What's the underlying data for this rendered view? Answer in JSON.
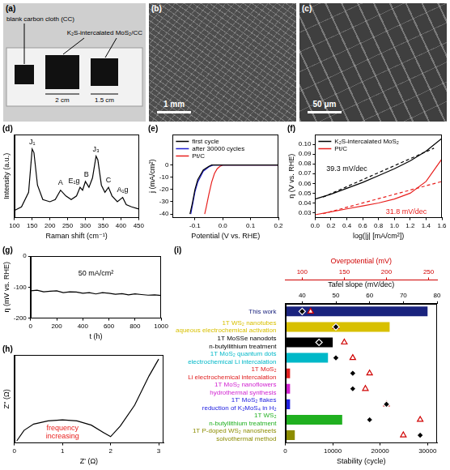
{
  "figure": {
    "a": {
      "letter": "(a)",
      "labels": [
        "blank carbon cloth (CC)",
        "K₂S-intercalated MoS₂/CC"
      ],
      "dimensions": [
        "2 cm",
        "1.5 cm"
      ]
    },
    "b": {
      "letter": "(b)",
      "scale_bar": "1 mm"
    },
    "c": {
      "letter": "(c)",
      "scale_bar": "50 μm"
    }
  },
  "chart_data": [
    {
      "letter": "(d)",
      "type": "line",
      "x_label": "Raman shift (cm⁻¹)",
      "y_label": "Intensity (a.u.)",
      "xlim": [
        100,
        450
      ],
      "xticks": [
        100,
        150,
        200,
        250,
        300,
        350,
        400,
        450
      ],
      "ylim": [
        0,
        115
      ],
      "tick_labels": "x",
      "grid": false,
      "series": [
        {
          "color": "#000000",
          "x": [
            100,
            120,
            140,
            150,
            155,
            165,
            180,
            200,
            215,
            230,
            245,
            260,
            275,
            285,
            292,
            300,
            310,
            320,
            330,
            335,
            345,
            355,
            365,
            375,
            390,
            405,
            415,
            430,
            450
          ],
          "values": [
            10,
            15,
            35,
            95,
            90,
            45,
            25,
            22,
            25,
            38,
            30,
            25,
            30,
            42,
            38,
            50,
            42,
            55,
            85,
            80,
            45,
            35,
            42,
            30,
            22,
            28,
            18,
            15,
            12
          ]
        }
      ],
      "annotations": [
        {
          "text": "J₁",
          "x": 150,
          "y": 104
        },
        {
          "text": "A",
          "x": 230,
          "y": 48
        },
        {
          "text": "E₁g",
          "x": 268,
          "y": 50
        },
        {
          "text": "B",
          "x": 303,
          "y": 60
        },
        {
          "text": "J₃",
          "x": 330,
          "y": 94
        },
        {
          "text": "C",
          "x": 365,
          "y": 52
        },
        {
          "text": "A₁g",
          "x": 405,
          "y": 38
        }
      ]
    },
    {
      "letter": "(e)",
      "type": "line",
      "x_label": "Potential (V vs. RHE)",
      "y_label": "j (mA/cm²)",
      "xlim": [
        -0.18,
        0.2
      ],
      "xticks": [
        -0.1,
        {
          "value": 0,
          "label": "0.0"
        },
        0.1,
        0.2
      ],
      "ylim": [
        -43,
        25
      ],
      "yticks": [
        -40,
        -30,
        -20,
        -10,
        0
      ],
      "grid": false,
      "legend": "upper left",
      "series": [
        {
          "name": "first cycle",
          "color": "#000000",
          "x": [
            -0.118,
            -0.11,
            -0.1,
            -0.09,
            -0.07,
            -0.05,
            -0.04,
            0,
            0.2
          ],
          "values": [
            -40,
            -32,
            -20,
            -12,
            -4,
            -1,
            0,
            0,
            0
          ]
        },
        {
          "name": "after 30000 cycles",
          "color": "#1f1fd0",
          "x": [
            -0.115,
            -0.11,
            -0.1,
            -0.09,
            -0.07,
            -0.05,
            -0.035,
            0,
            0.2
          ],
          "values": [
            -40,
            -34,
            -22,
            -14,
            -5,
            -1.5,
            0,
            0,
            0
          ]
        },
        {
          "name": "Pt/C",
          "color": "#e8201e",
          "x": [
            -0.065,
            -0.06,
            -0.05,
            -0.04,
            -0.03,
            -0.02,
            -0.01,
            0,
            0.2
          ],
          "values": [
            -40,
            -35,
            -24,
            -14,
            -7,
            -3,
            -1,
            0,
            0
          ]
        }
      ]
    },
    {
      "letter": "(f)",
      "type": "line",
      "x_label": "log(|j| [mA/cm²])",
      "y_label": "η (V vs. RHE)",
      "xlim": [
        0,
        1.6
      ],
      "xticks": [
        {
          "value": 0,
          "label": "0.0"
        },
        0.2,
        0.4,
        0.6,
        0.8,
        {
          "value": 1,
          "label": "1.0"
        },
        1.2,
        1.4,
        1.6
      ],
      "ylim": [
        0.025,
        0.11
      ],
      "yticks": [
        0.03,
        0.04,
        0.05,
        0.06,
        0.07,
        0.08,
        0.09,
        {
          "value": 0.1,
          "label": "0.10"
        }
      ],
      "grid": false,
      "legend": "upper left",
      "series": [
        {
          "name": "K₂S-intercalated MoS₂",
          "color": "#000000",
          "x": [
            0,
            0.2,
            0.4,
            0.6,
            0.8,
            1.0,
            1.2,
            1.4,
            1.6
          ],
          "values": [
            0.044,
            0.049,
            0.055,
            0.061,
            0.068,
            0.075,
            0.083,
            0.093,
            0.106
          ]
        },
        {
          "name": "Pt/C",
          "color": "#e8201e",
          "x": [
            0,
            0.2,
            0.4,
            0.6,
            0.8,
            1.0,
            1.2,
            1.4,
            1.6
          ],
          "values": [
            0.028,
            0.031,
            0.034,
            0.037,
            0.04,
            0.044,
            0.05,
            0.062,
            0.085
          ]
        },
        {
          "color": "#000000",
          "line_style": "dashed",
          "x": [
            0.1,
            1.5
          ],
          "values": [
            0.046,
            0.096
          ]
        },
        {
          "color": "#e8201e",
          "line_style": "dashed",
          "x": [
            0.1,
            1.6
          ],
          "values": [
            0.029,
            0.062
          ]
        }
      ],
      "annotations": [
        {
          "text": "39.3 mV/dec",
          "x": 0.4,
          "y": 0.075
        },
        {
          "text": "31.8 mV/dec",
          "x": 1.15,
          "y": 0.031,
          "color": "#e8201e"
        }
      ]
    },
    {
      "letter": "(g)",
      "type": "line",
      "x_label": "t (h)",
      "y_label": "η (mV vs. RHE)",
      "xlim": [
        0,
        1000
      ],
      "xticks": [
        0,
        200,
        400,
        600,
        800,
        1000
      ],
      "ylim": [
        -200,
        0
      ],
      "yticks": [
        -200,
        -100,
        0
      ],
      "grid": false,
      "series": [
        {
          "color": "#000000",
          "x": [
            0,
            50,
            100,
            150,
            200,
            250,
            300,
            350,
            400,
            450,
            500,
            550,
            600,
            650,
            700,
            750,
            800,
            850,
            900,
            950,
            1000
          ],
          "values": [
            -112,
            -110,
            -115,
            -113,
            -112,
            -118,
            -115,
            -116,
            -120,
            -118,
            -122,
            -118,
            -120,
            -123,
            -121,
            -125,
            -122,
            -124,
            -126,
            -125,
            -127
          ]
        }
      ],
      "annotations": [
        {
          "text": "50 mA/cm²",
          "x": 500,
          "y": -55
        }
      ]
    },
    {
      "letter": "(h)",
      "type": "line",
      "x_label": "Z' (Ω)",
      "y_label": "Z'' (Ω)",
      "xlim": [
        0,
        3.1
      ],
      "xticks": [
        0,
        1,
        2,
        3
      ],
      "ylim": [
        0,
        4.2
      ],
      "tick_labels": "x",
      "grid": false,
      "series": [
        {
          "color": "#000000",
          "x": [
            0.05,
            0.2,
            0.4,
            0.7,
            1.0,
            1.3,
            1.6,
            1.85,
            2.0,
            2.2,
            2.5,
            2.8,
            3.0
          ],
          "values": [
            0.1,
            0.6,
            0.9,
            1.05,
            1.1,
            1.05,
            0.85,
            0.5,
            0.3,
            0.8,
            1.8,
            3.2,
            4.0
          ]
        }
      ],
      "annotations": [
        {
          "text": "frequency increasing",
          "x": 1.0,
          "y": 0.5,
          "color": "#e8201e"
        }
      ]
    },
    {
      "letter": "(i)",
      "type": "bar",
      "orientation": "horizontal",
      "grid": false,
      "categories": [
        [
          "This work"
        ],
        [
          "1T WS₂ nanotubes",
          "aqueous electrochemical activation"
        ],
        [
          "1T MoSSe nanodots",
          "n-butyllithium treatment"
        ],
        [
          "1T MoS₂ quantum dots",
          "electrochemical Li intercalation"
        ],
        [
          "1T MoS₂",
          "Li electrochemical intercalation"
        ],
        [
          "1T MoS₂ nanoflowers",
          "hydrothermal synthesis"
        ],
        [
          "1T' MoS₂ flakes",
          "reduction of K₂MoS₄ in H₂"
        ],
        [
          "1T WS₂",
          "n-butyllithium treatment"
        ],
        [
          "1T P-doped WS₂ nanosheets",
          "solvothermal method"
        ]
      ],
      "colors": [
        "#1a237e",
        "#d8c000",
        "#000000",
        "#00b8c8",
        "#e02020",
        "#d020d0",
        "#2020e0",
        "#20b020",
        "#8c8c00"
      ],
      "x_label": "Stability (cycle)",
      "xlim": [
        0,
        32000
      ],
      "xticks": [
        0,
        10000,
        20000,
        30000
      ],
      "values": [
        30000,
        22000,
        10000,
        9000,
        1000,
        1000,
        1000,
        12000,
        2000
      ],
      "tafel_slope": {
        "title": "Tafel slope (mV/dec)",
        "lim": [
          35,
          80
        ],
        "ticks": [
          40,
          50,
          60,
          70,
          80
        ],
        "values": [
          40,
          50,
          45,
          50,
          55,
          55,
          65,
          60,
          75
        ],
        "marker": "diamond",
        "color": "#000000"
      },
      "overpotential": {
        "title": "Overpotential (mV)",
        "lim": [
          80,
          260
        ],
        "ticks": [
          100,
          150,
          200,
          250
        ],
        "values": [
          110,
          140,
          150,
          160,
          180,
          175,
          200,
          240,
          220
        ],
        "marker": "triangle",
        "color": "#d00000"
      }
    }
  ]
}
